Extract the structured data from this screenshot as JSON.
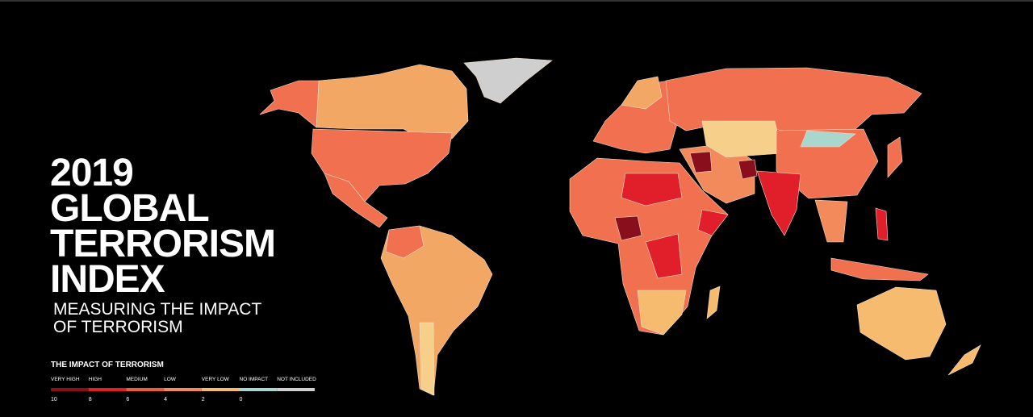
{
  "title": [
    "2019",
    "GLOBAL",
    "TERRORISM",
    "INDEX"
  ],
  "subtitle": [
    "MEASURING THE IMPACT",
    "OF TERRORISM"
  ],
  "legend": {
    "title": "THE IMPACT OF TERRORISM",
    "levels": [
      {
        "label": "VERY HIGH",
        "color": "#8a0f1c"
      },
      {
        "label": "HIGH",
        "color": "#e01f2b"
      },
      {
        "label": "MEDIUM",
        "color": "#ee5a3e"
      },
      {
        "label": "LOW",
        "color": "#f28a5c"
      },
      {
        "label": "VERY LOW",
        "color": "#f6bb6e"
      },
      {
        "label": "NO IMPACT",
        "color": "#a9d6cd"
      },
      {
        "label": "NOT INCLUDED",
        "color": "#d0d0d0"
      }
    ],
    "scale": [
      "10",
      "8",
      "6",
      "4",
      "2",
      "0"
    ]
  }
}
